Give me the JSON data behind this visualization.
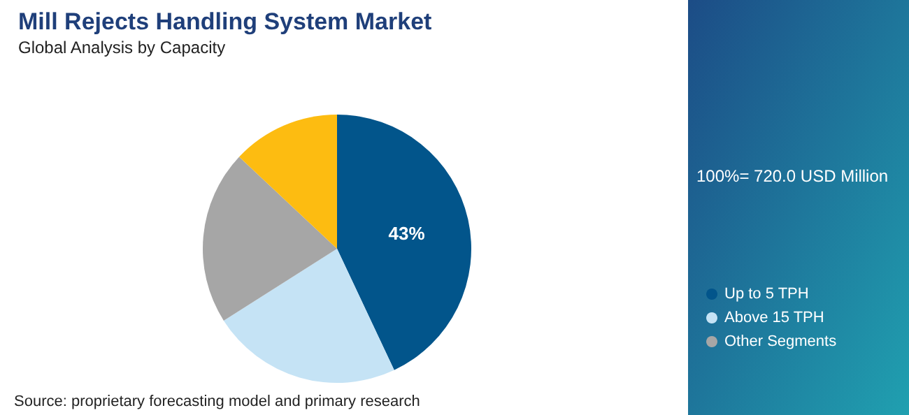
{
  "chart_data": {
    "type": "pie",
    "title": "Mill Rejects Handling System Market",
    "subtitle": "Global Analysis by Capacity",
    "categories": [
      "Up to 5 TPH",
      "Above 15 TPH",
      "Other Segments",
      null
    ],
    "values": [
      43,
      23,
      21,
      13
    ],
    "colors": [
      "#02558b",
      "#c5e3f5",
      "#a6a6a6",
      "#fdbc11"
    ],
    "value_labels": [
      "43%",
      null,
      null,
      null
    ],
    "legend": "right",
    "annotations": [
      "100%= 720.0 USD Million",
      "Source: proprietary forecasting model and primary research"
    ]
  }
}
